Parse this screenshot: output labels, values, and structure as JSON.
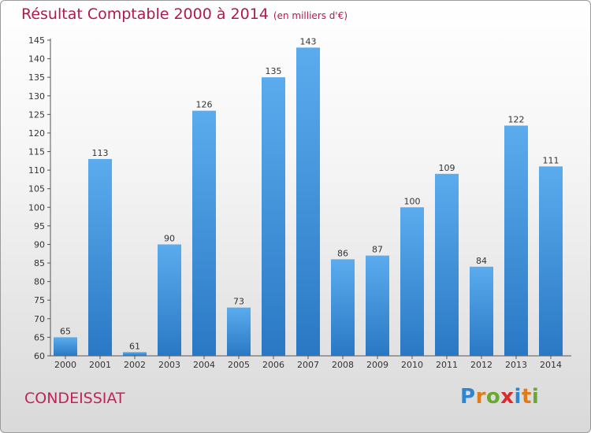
{
  "chart_data": {
    "type": "bar",
    "title": "Résultat Comptable 2000 à 2014",
    "subtitle": "(en milliers d'€)",
    "categories": [
      "2000",
      "2001",
      "2002",
      "2003",
      "2004",
      "2005",
      "2006",
      "2007",
      "2008",
      "2009",
      "2010",
      "2011",
      "2012",
      "2013",
      "2014"
    ],
    "values": [
      65,
      113,
      61,
      90,
      126,
      73,
      135,
      143,
      86,
      87,
      100,
      109,
      84,
      122,
      111
    ],
    "ylim": [
      60,
      145
    ],
    "ytick_step": 5,
    "grid": false,
    "bar_color": "#3d8fd6"
  },
  "footer": {
    "commune": "CONDEISSIAT",
    "logo": {
      "letters": [
        "P",
        "r",
        "o",
        "x",
        "i",
        "t",
        "i"
      ],
      "colors": [
        "#2f86d0",
        "#e07b1a",
        "#6aa832",
        "#d92b2b",
        "#2f86d0",
        "#e07b1a",
        "#6aa832"
      ]
    }
  }
}
